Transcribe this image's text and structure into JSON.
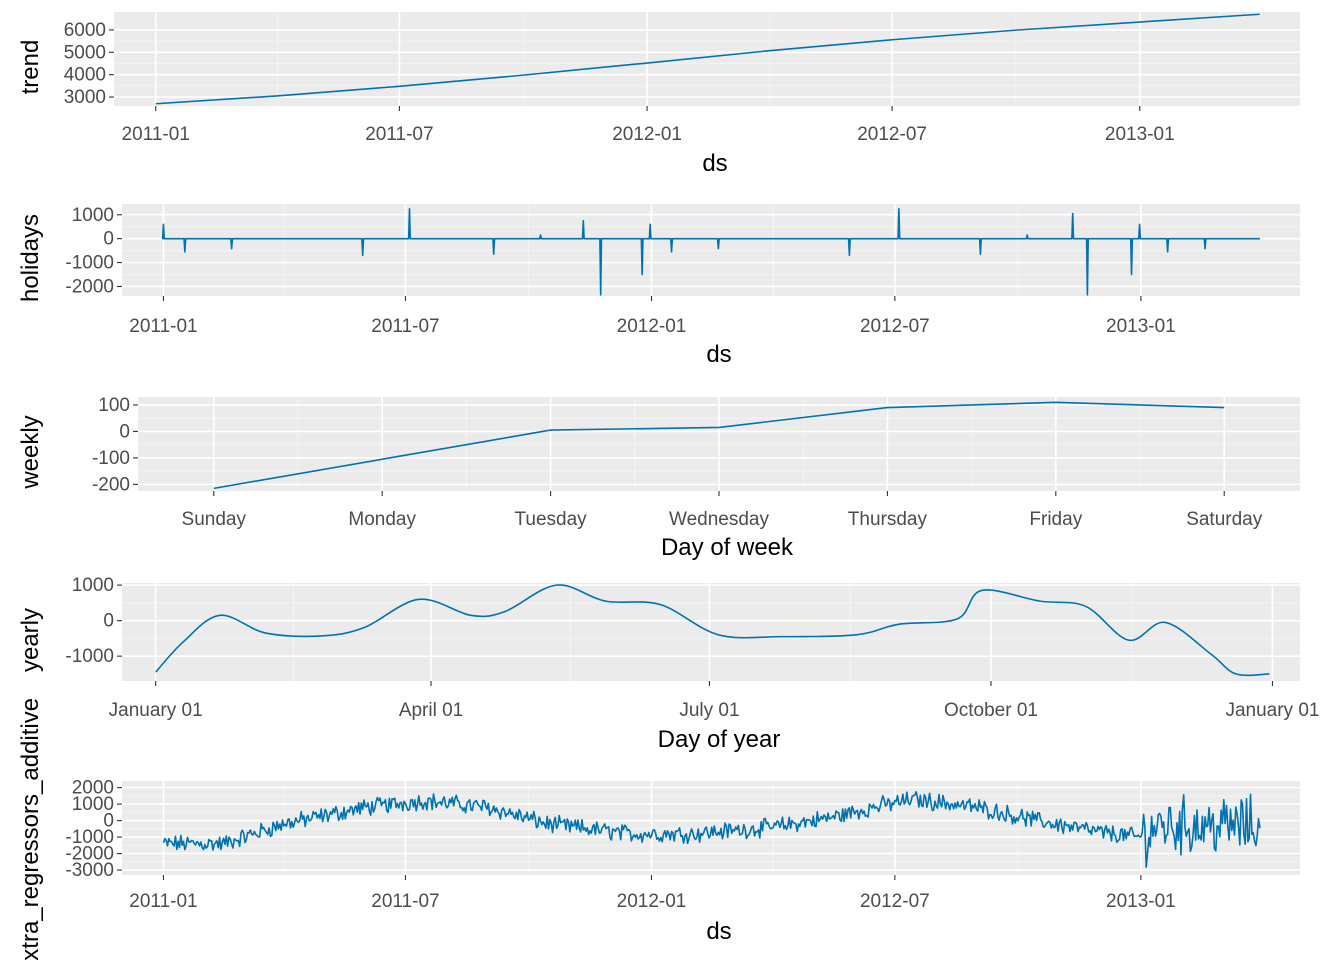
{
  "colors": {
    "line": "#0072B2",
    "panel": "#ebebeb",
    "grid": "#ffffff"
  },
  "chart_data": [
    {
      "type": "line",
      "ylabel": "trend",
      "xlabel": "ds",
      "x_axis_kind": "date",
      "xlim": [
        "2010-12-01",
        "2013-04-30"
      ],
      "ylim": [
        2600,
        6800
      ],
      "yticks": [
        3000,
        4000,
        5000,
        6000
      ],
      "xticks": [
        "2011-01-01",
        "2011-07-01",
        "2012-01-01",
        "2012-07-01",
        "2013-01-01"
      ],
      "xtick_labels": [
        "2011-01",
        "2011-07",
        "2012-01",
        "2012-07",
        "2013-01"
      ],
      "series": [
        {
          "x": [
            "2011-01-01",
            "2011-04-01",
            "2011-07-01",
            "2011-10-01",
            "2012-01-01",
            "2012-04-01",
            "2012-07-01",
            "2012-10-01",
            "2013-01-01",
            "2013-03-31"
          ],
          "y": [
            2700,
            3050,
            3480,
            3980,
            4520,
            5070,
            5560,
            5990,
            6350,
            6700
          ]
        }
      ]
    },
    {
      "type": "line",
      "ylabel": "holidays",
      "xlabel": "ds",
      "x_axis_kind": "date",
      "xlim": [
        "2010-12-01",
        "2013-04-30"
      ],
      "ylim": [
        -2400,
        1450
      ],
      "yticks": [
        -2000,
        -1000,
        0,
        1000
      ],
      "xticks": [
        "2011-01-01",
        "2011-07-01",
        "2012-01-01",
        "2012-07-01",
        "2013-01-01"
      ],
      "xtick_labels": [
        "2011-01",
        "2011-07",
        "2012-01",
        "2012-07",
        "2013-01"
      ],
      "baseline": 0,
      "start": "2011-01-01",
      "end": "2013-03-31",
      "spikes": [
        {
          "date": "2011-01-01",
          "value": 600
        },
        {
          "date": "2011-01-17",
          "value": -550
        },
        {
          "date": "2011-02-21",
          "value": -420
        },
        {
          "date": "2011-05-30",
          "value": -700
        },
        {
          "date": "2011-07-04",
          "value": 1250
        },
        {
          "date": "2011-09-05",
          "value": -650
        },
        {
          "date": "2011-10-10",
          "value": 150
        },
        {
          "date": "2011-11-11",
          "value": 750
        },
        {
          "date": "2011-11-24",
          "value": -2350
        },
        {
          "date": "2011-12-25",
          "value": -1500
        },
        {
          "date": "2011-12-31",
          "value": 600
        },
        {
          "date": "2012-01-16",
          "value": -550
        },
        {
          "date": "2012-02-20",
          "value": -420
        },
        {
          "date": "2012-05-28",
          "value": -700
        },
        {
          "date": "2012-07-04",
          "value": 1250
        },
        {
          "date": "2012-09-03",
          "value": -650
        },
        {
          "date": "2012-10-08",
          "value": 150
        },
        {
          "date": "2012-11-11",
          "value": 1050
        },
        {
          "date": "2012-11-22",
          "value": -2350
        },
        {
          "date": "2012-12-25",
          "value": -1500
        },
        {
          "date": "2012-12-31",
          "value": 600
        },
        {
          "date": "2013-01-21",
          "value": -550
        },
        {
          "date": "2013-02-18",
          "value": -420
        }
      ]
    },
    {
      "type": "line",
      "ylabel": "weekly",
      "xlabel": "Day of week",
      "x_axis_kind": "category",
      "categories": [
        "Sunday",
        "Monday",
        "Tuesday",
        "Wednesday",
        "Thursday",
        "Friday",
        "Saturday"
      ],
      "xlim": [
        -0.45,
        6.45
      ],
      "ylim": [
        -225,
        130
      ],
      "yticks": [
        -200,
        -100,
        0,
        100
      ],
      "series": [
        {
          "x": [
            0,
            1,
            2,
            3,
            4,
            4.5,
            5,
            5.5,
            6
          ],
          "y": [
            -215,
            -105,
            5,
            15,
            90,
            100,
            110,
            100,
            90
          ]
        }
      ]
    },
    {
      "type": "line",
      "ylabel": "yearly",
      "xlabel": "Day of year",
      "x_axis_kind": "date",
      "xlim": [
        "2016-12-21",
        "2018-01-10"
      ],
      "ylim": [
        -1700,
        1060
      ],
      "yticks": [
        -1000,
        0,
        1000
      ],
      "xticks": [
        "2017-01-01",
        "2017-04-01",
        "2017-07-01",
        "2017-10-01",
        "2018-01-01"
      ],
      "xtick_labels": [
        "January 01",
        "April 01",
        "July 01",
        "October 01",
        "January 01"
      ],
      "series": [
        {
          "x": [
            "2017-01-01",
            "2017-01-10",
            "2017-01-22",
            "2017-02-06",
            "2017-02-24",
            "2017-03-10",
            "2017-03-28",
            "2017-04-14",
            "2017-04-25",
            "2017-05-12",
            "2017-05-28",
            "2017-06-15",
            "2017-07-04",
            "2017-07-25",
            "2017-08-18",
            "2017-09-01",
            "2017-09-20",
            "2017-09-28",
            "2017-10-17",
            "2017-11-01",
            "2017-11-15",
            "2017-11-27",
            "2017-12-12",
            "2017-12-20",
            "2017-12-31"
          ],
          "y": [
            -1450,
            -600,
            150,
            -350,
            -430,
            -200,
            600,
            150,
            250,
            1000,
            550,
            450,
            -400,
            -450,
            -400,
            -100,
            50,
            850,
            550,
            400,
            -550,
            -50,
            -950,
            -1500,
            -1500
          ]
        }
      ]
    },
    {
      "type": "line",
      "ylabel": "extra_regressors_additive",
      "xlabel": "ds",
      "x_axis_kind": "date",
      "xlim": [
        "2010-12-01",
        "2013-04-30"
      ],
      "ylim": [
        -3300,
        2400
      ],
      "yticks": [
        -3000,
        -2000,
        -1000,
        0,
        1000,
        2000
      ],
      "xticks": [
        "2011-01-01",
        "2011-07-01",
        "2012-01-01",
        "2012-07-01",
        "2013-01-01"
      ],
      "xtick_labels": [
        "2011-01",
        "2011-07",
        "2012-01",
        "2012-07",
        "2013-01"
      ],
      "start": "2011-01-01",
      "end": "2013-03-31",
      "envelope": {
        "x": [
          "2011-01-01",
          "2011-02-15",
          "2011-04-01",
          "2011-06-01",
          "2011-07-15",
          "2011-09-01",
          "2011-10-15",
          "2011-12-15",
          "2012-02-01",
          "2012-04-01",
          "2012-05-15",
          "2012-06-20",
          "2012-07-15",
          "2012-09-01",
          "2012-10-15",
          "2012-12-01",
          "2012-12-31",
          "2013-01-15",
          "2013-03-31"
        ],
        "y": [
          -1400,
          -1400,
          -200,
          800,
          1200,
          800,
          -200,
          -800,
          -800,
          -400,
          200,
          900,
          1300,
          800,
          0,
          -700,
          -1000,
          -300,
          -300
        ]
      },
      "noise_amp": [
        {
          "from": "2011-01-01",
          "to": "2012-12-31",
          "amp": 650
        },
        {
          "from": "2013-01-01",
          "to": "2013-03-31",
          "amp": 2200
        }
      ]
    }
  ]
}
